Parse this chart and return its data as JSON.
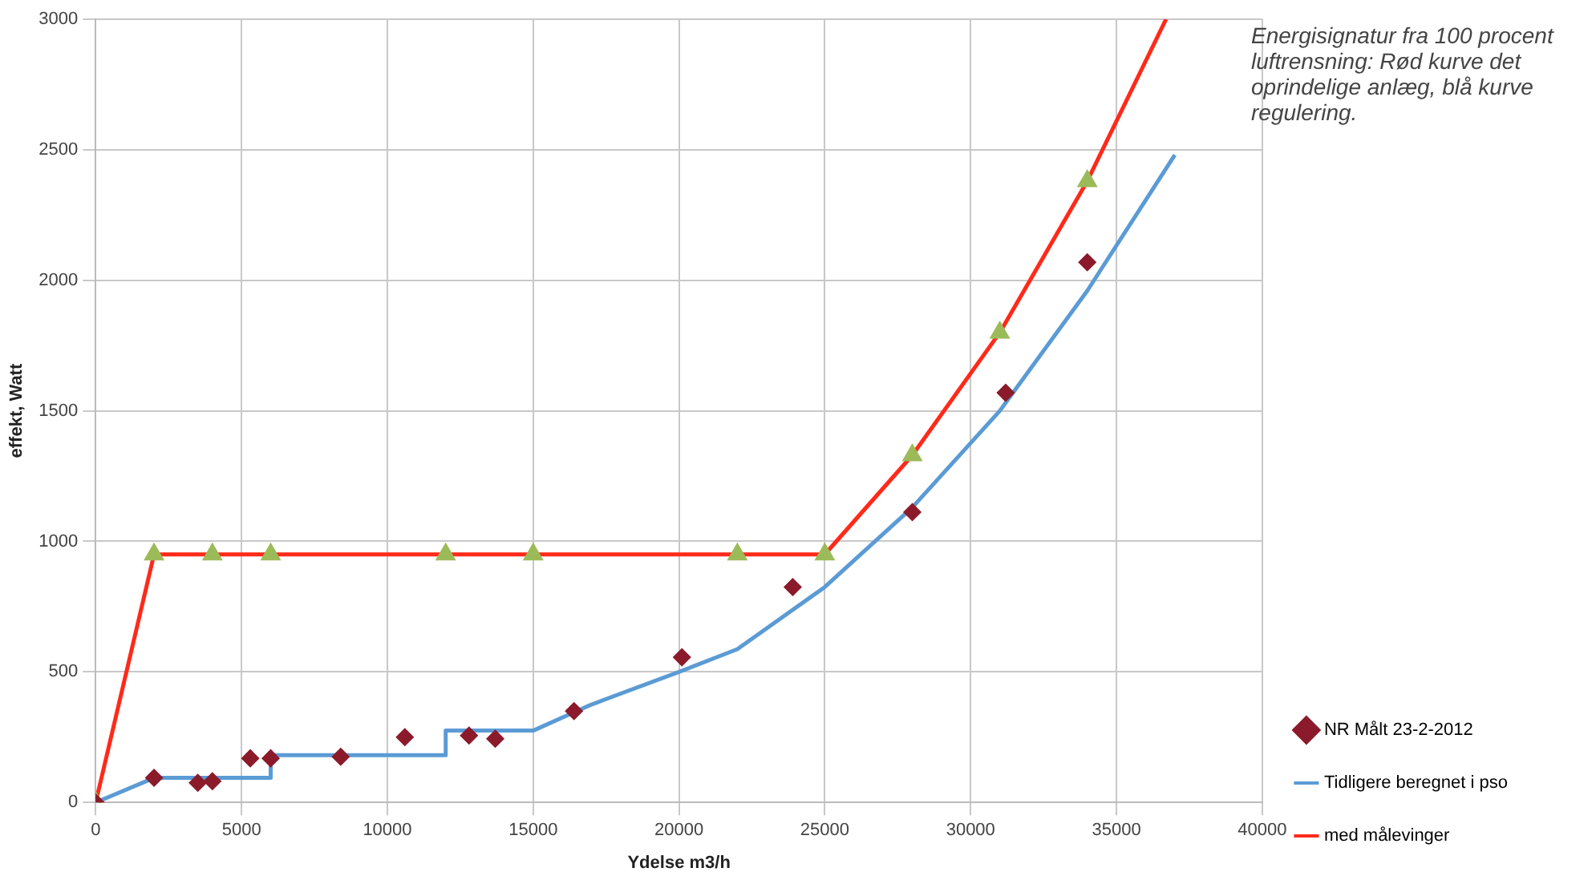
{
  "chart_data": {
    "type": "line",
    "xlabel": "Ydelse m3/h",
    "ylabel": "effekt, Watt",
    "xlim": [
      0,
      40000
    ],
    "xticks": [
      0,
      5000,
      10000,
      15000,
      20000,
      25000,
      30000,
      35000,
      40000
    ],
    "ylim": [
      0,
      3000
    ],
    "yticks": [
      0,
      500,
      1000,
      1500,
      2000,
      2500,
      3000
    ],
    "grid": true,
    "legend": "right",
    "annotations": [
      "Energisignatur fra 100 procent luftrensning: Rød kurve det oprindelige anlæg, blå kurve regulering."
    ],
    "series": [
      {
        "name": "NR Målt 23-2-2012",
        "type": "scatter",
        "marker": "diamond",
        "color": "#8b1a2b",
        "x": [
          0,
          2000,
          3500,
          4000,
          5300,
          6000,
          8400,
          10600,
          12800,
          13700,
          16400,
          20100,
          23900,
          28000,
          31200,
          34000
        ],
        "values": [
          0,
          94,
          75,
          81,
          169,
          169,
          175,
          250,
          256,
          244,
          350,
          556,
          825,
          1112,
          1569,
          2069
        ]
      },
      {
        "name": "Tidligere beregnet i pso",
        "type": "line",
        "marker": "none",
        "color": "#5b9bd5",
        "x": [
          0,
          2000,
          6000,
          6000,
          12000,
          12000,
          15000,
          17000,
          20000,
          22000,
          25000,
          28000,
          31000,
          34000,
          37000
        ],
        "values": [
          0,
          94,
          94,
          181,
          181,
          275,
          275,
          375,
          500,
          587,
          825,
          1130,
          1500,
          1960,
          2480
        ]
      },
      {
        "name": "med målevinger",
        "type": "line",
        "marker": "triangle",
        "color": "#ff2a1a",
        "x": [
          0,
          2000,
          4000,
          6000,
          12000,
          15000,
          22000,
          25000,
          28000,
          31000,
          34000,
          36700
        ],
        "values": [
          0,
          950,
          950,
          950,
          950,
          950,
          950,
          950,
          1330,
          1800,
          2380,
          3000
        ],
        "colors": [
          "#9bbb59",
          "#9bbb59",
          "#9bbb59",
          "#9bbb59",
          "#9bbb59",
          "#9bbb59",
          "#9bbb59",
          "#9bbb59",
          "#9bbb59",
          "#9bbb59",
          "#9bbb59",
          null
        ]
      }
    ]
  }
}
